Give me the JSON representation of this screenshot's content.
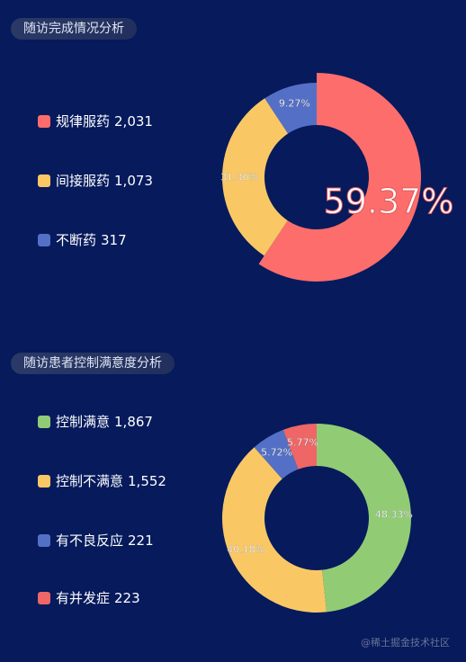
{
  "chart_data": [
    {
      "type": "pie",
      "title": "随访完成情况分析",
      "categories": [
        "规律服药",
        "间接服药",
        "不断药"
      ],
      "values": [
        2031,
        1073,
        317
      ],
      "value_labels": [
        "2,031",
        "1,073",
        "317"
      ],
      "percent_labels": [
        "59.37%",
        "31.36%",
        "9.27%"
      ],
      "colors": [
        "#fd6d6b",
        "#f9c865",
        "#5470c6"
      ],
      "highlight": {
        "label": "59.37%"
      },
      "legend_position": "left"
    },
    {
      "type": "pie",
      "title": "随访患者控制满意度分析",
      "categories": [
        "控制满意",
        "控制不满意",
        "有不良反应",
        "有并发症"
      ],
      "values": [
        1867,
        1552,
        221,
        223
      ],
      "value_labels": [
        "1,867",
        "1,552",
        "221",
        "223"
      ],
      "percent_labels": [
        "48.33%",
        "40.18%",
        "5.72%",
        "5.77%"
      ],
      "colors": [
        "#91cc75",
        "#f9c865",
        "#5470c6",
        "#ee6666"
      ],
      "legend_position": "left"
    }
  ],
  "watermark": "@稀土掘金技术社区"
}
